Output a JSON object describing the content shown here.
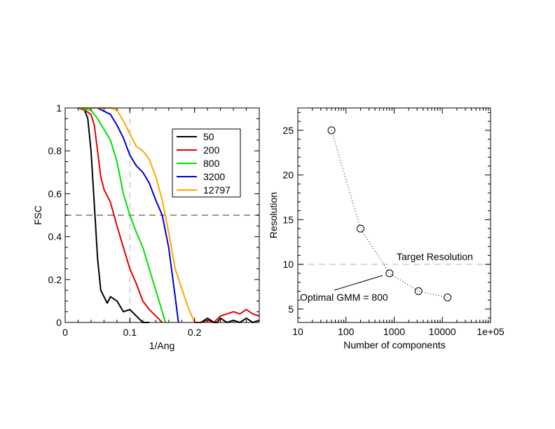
{
  "chart_data": [
    {
      "type": "line",
      "xlabel": "1/Ang",
      "ylabel": "FSC",
      "xlim": [
        0,
        0.3
      ],
      "ylim": [
        0,
        1
      ],
      "xticks": [
        {
          "value": 0,
          "label": "0"
        },
        {
          "value": 0.1,
          "label": "0.1"
        },
        {
          "value": 0.2,
          "label": "0.2"
        }
      ],
      "yticks": [
        {
          "value": 0,
          "label": "0"
        },
        {
          "value": 0.2,
          "label": "0.2"
        },
        {
          "value": 0.4,
          "label": "0.4"
        },
        {
          "value": 0.6,
          "label": "0.6"
        },
        {
          "value": 0.8,
          "label": "0.8"
        },
        {
          "value": 1,
          "label": "1"
        }
      ],
      "threshold_y": 0.5,
      "threshold_color": "#b09090",
      "target_x": 0.1,
      "target_color": "#d8d8d8",
      "legend_position": "top-right",
      "series": [
        {
          "name": "50",
          "color": "#000000",
          "x": [
            0.02,
            0.03,
            0.035,
            0.04,
            0.045,
            0.05,
            0.055,
            0.06,
            0.065,
            0.07,
            0.08,
            0.09,
            0.1,
            0.11,
            0.12,
            0.13
          ],
          "y": [
            1.0,
            0.99,
            0.95,
            0.8,
            0.55,
            0.3,
            0.15,
            0.12,
            0.09,
            0.12,
            0.1,
            0.05,
            0.06,
            0.03,
            0.0,
            0.0
          ]
        },
        {
          "name": "200",
          "color": "#e00000",
          "x": [
            0.02,
            0.03,
            0.04,
            0.045,
            0.05,
            0.055,
            0.06,
            0.07,
            0.08,
            0.09,
            0.1,
            0.11,
            0.12,
            0.13,
            0.14,
            0.15
          ],
          "y": [
            1.0,
            0.99,
            0.97,
            0.92,
            0.8,
            0.68,
            0.62,
            0.56,
            0.45,
            0.35,
            0.25,
            0.18,
            0.1,
            0.06,
            0.03,
            0.0
          ]
        },
        {
          "name": "800",
          "color": "#00e000",
          "x": [
            0.02,
            0.04,
            0.05,
            0.06,
            0.07,
            0.08,
            0.09,
            0.1,
            0.11,
            0.12,
            0.13,
            0.14,
            0.15,
            0.155
          ],
          "y": [
            1.0,
            0.99,
            0.95,
            0.9,
            0.85,
            0.75,
            0.6,
            0.5,
            0.42,
            0.35,
            0.25,
            0.15,
            0.05,
            0.0
          ]
        },
        {
          "name": "3200",
          "color": "#0000d0",
          "x": [
            0.02,
            0.05,
            0.07,
            0.08,
            0.09,
            0.1,
            0.11,
            0.12,
            0.13,
            0.14,
            0.15,
            0.16,
            0.17,
            0.175
          ],
          "y": [
            1.0,
            1.0,
            0.97,
            0.92,
            0.86,
            0.78,
            0.73,
            0.7,
            0.65,
            0.57,
            0.5,
            0.35,
            0.12,
            0.0
          ]
        },
        {
          "name": "12797",
          "color": "#ffa500",
          "x": [
            0.02,
            0.07,
            0.08,
            0.09,
            0.1,
            0.11,
            0.12,
            0.13,
            0.14,
            0.15,
            0.16,
            0.17,
            0.18,
            0.19,
            0.2
          ],
          "y": [
            1.0,
            1.0,
            0.99,
            0.94,
            0.88,
            0.82,
            0.8,
            0.76,
            0.68,
            0.57,
            0.42,
            0.25,
            0.16,
            0.07,
            0.0
          ]
        }
      ],
      "baseline_noise": {
        "color": "#e00000",
        "x": [
          0.2,
          0.21,
          0.22,
          0.23,
          0.24,
          0.25,
          0.26,
          0.27,
          0.28,
          0.29,
          0.3
        ],
        "y": [
          0.0,
          0.0,
          0.01,
          0.0,
          0.03,
          0.04,
          0.05,
          0.04,
          0.06,
          0.04,
          0.03
        ]
      },
      "baseline_noise_black": {
        "color": "#000000",
        "x": [
          0.21,
          0.22,
          0.23,
          0.235,
          0.24,
          0.25,
          0.26,
          0.27,
          0.28,
          0.29,
          0.3
        ],
        "y": [
          0.0,
          0.02,
          0.0,
          0.0,
          0.02,
          0.0,
          0.01,
          0.0,
          0.02,
          0.0,
          0.01
        ]
      }
    },
    {
      "type": "scatter",
      "xscale": "log",
      "xlabel": "Number of components",
      "ylabel": "Resolution",
      "xlim": [
        10,
        100000
      ],
      "ylim": [
        3.5,
        27.5
      ],
      "xticks": [
        {
          "value": 10,
          "label": "10"
        },
        {
          "value": 100,
          "label": "100"
        },
        {
          "value": 1000,
          "label": "1000"
        },
        {
          "value": 10000,
          "label": "10000"
        },
        {
          "value": 100000,
          "label": "1e+05"
        }
      ],
      "yticks": [
        {
          "value": 5,
          "label": "5"
        },
        {
          "value": 10,
          "label": "10"
        },
        {
          "value": 15,
          "label": "15"
        },
        {
          "value": 20,
          "label": "20"
        },
        {
          "value": 25,
          "label": "25"
        }
      ],
      "series": [
        {
          "x": [
            50,
            200,
            800,
            3200,
            12797
          ],
          "y": [
            25,
            14,
            9,
            7,
            6.3
          ]
        }
      ],
      "target_resolution": 10,
      "target_label": "Target Resolution",
      "target_color": "#d8d8d8",
      "annotation": {
        "text": "Optimal GMM = 800",
        "x": 800,
        "y": 9
      }
    }
  ]
}
